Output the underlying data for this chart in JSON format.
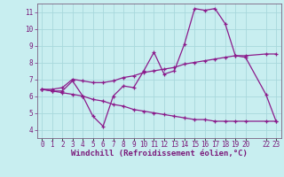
{
  "title": "Windchill (Refroidissement éolien,°C)",
  "bg_color": "#c8eef0",
  "grid_color": "#a8d8dc",
  "line_color": "#8b1a8b",
  "spine_color": "#7b6080",
  "ylim": [
    3.5,
    11.5
  ],
  "xlim": [
    -0.5,
    23.5
  ],
  "yticks": [
    4,
    5,
    6,
    7,
    8,
    9,
    10,
    11
  ],
  "main_x": [
    0,
    1,
    2,
    3,
    4,
    5,
    6,
    7,
    8,
    9,
    10,
    11,
    12,
    13,
    14,
    15,
    16,
    17,
    18,
    19,
    20,
    22,
    23
  ],
  "main_y": [
    6.4,
    6.3,
    6.3,
    6.9,
    6.0,
    4.8,
    4.2,
    6.0,
    6.6,
    6.5,
    7.5,
    8.6,
    7.3,
    7.5,
    9.1,
    11.2,
    11.1,
    11.2,
    10.3,
    8.4,
    8.3,
    6.1,
    4.5
  ],
  "upper_x": [
    0,
    1,
    2,
    3,
    4,
    5,
    6,
    7,
    8,
    9,
    10,
    11,
    12,
    13,
    14,
    15,
    16,
    17,
    18,
    19,
    20,
    22,
    23
  ],
  "upper_y": [
    6.4,
    6.4,
    6.5,
    7.0,
    6.9,
    6.8,
    6.8,
    6.9,
    7.1,
    7.2,
    7.4,
    7.5,
    7.6,
    7.7,
    7.9,
    8.0,
    8.1,
    8.2,
    8.3,
    8.4,
    8.4,
    8.5,
    8.5
  ],
  "lower_x": [
    0,
    1,
    2,
    3,
    4,
    5,
    6,
    7,
    8,
    9,
    10,
    11,
    12,
    13,
    14,
    15,
    16,
    17,
    18,
    19,
    20,
    22,
    23
  ],
  "lower_y": [
    6.4,
    6.3,
    6.2,
    6.1,
    6.0,
    5.8,
    5.7,
    5.5,
    5.4,
    5.2,
    5.1,
    5.0,
    4.9,
    4.8,
    4.7,
    4.6,
    4.6,
    4.5,
    4.5,
    4.5,
    4.5,
    4.5,
    4.5
  ],
  "x_tick_positions": [
    0,
    1,
    2,
    3,
    4,
    5,
    6,
    7,
    8,
    9,
    10,
    11,
    12,
    13,
    14,
    15,
    16,
    17,
    18,
    19,
    20,
    22,
    23
  ],
  "x_tick_labels": [
    "0",
    "1",
    "2",
    "3",
    "4",
    "5",
    "6",
    "7",
    "8",
    "9",
    "10",
    "11",
    "12",
    "13",
    "14",
    "15",
    "16",
    "17",
    "18",
    "19",
    "20",
    "22",
    "23"
  ],
  "ylabel_fontsize": 6.5,
  "tick_fontsize": 5.5,
  "tick_label_color": "#7b1a7b"
}
